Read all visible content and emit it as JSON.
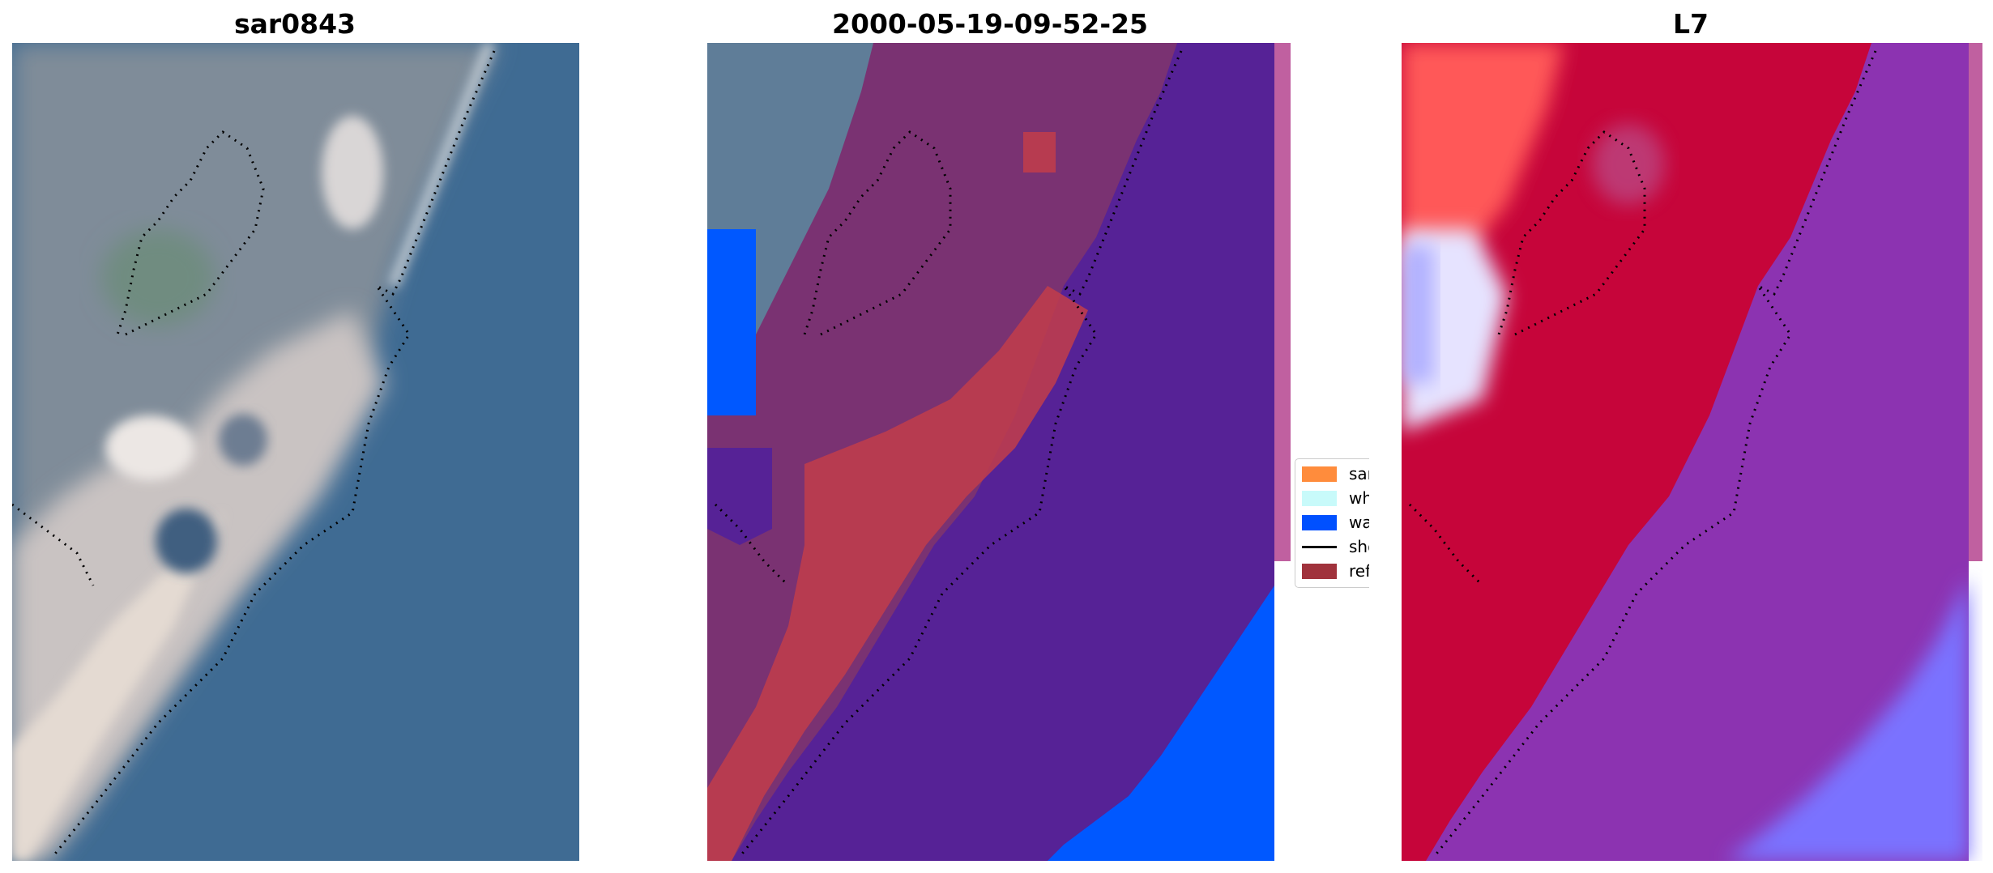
{
  "panels": [
    {
      "title": "sar0843"
    },
    {
      "title": "2000-05-19-09-52-25"
    },
    {
      "title": "L7"
    }
  ],
  "legend": {
    "items": [
      {
        "label": "sand",
        "color": "#ff8c3c",
        "kind": "swatch"
      },
      {
        "label": "whitewater",
        "color": "#c8fafa",
        "kind": "swatch"
      },
      {
        "label": "water",
        "color": "#0050ff",
        "kind": "swatch"
      },
      {
        "label": "shoreline",
        "color": "#000000",
        "kind": "line"
      },
      {
        "label": "reference",
        "color": "#a0323c",
        "kind": "swatch"
      }
    ]
  },
  "colors": {
    "water_rgb": "#3f6b93",
    "land_rgb": "#7d8c9a",
    "sand_rgb": "#d8d2cc",
    "class_land": "#7a3272",
    "class_water_overlay": "#562296",
    "class_water": "#0058ff",
    "class_reference": "#c23d4a",
    "mndwi_land": "#c6053a",
    "mndwi_water": "#8c33b1",
    "mndwi_high": "#7a72ff",
    "mndwi_low": "#ff4d4d"
  }
}
